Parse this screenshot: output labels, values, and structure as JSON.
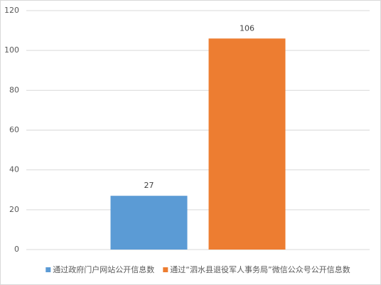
{
  "chart_data": {
    "type": "bar",
    "categories": [
      null
    ],
    "series": [
      {
        "name": "通过政府门户网站公开信息数",
        "color": "#5b9bd5",
        "values": [
          27
        ]
      },
      {
        "name": "通过“泗水县退役军人事务局”微信公众号公开信息数",
        "color": "#ed7d31",
        "values": [
          106
        ]
      }
    ],
    "ylim": [
      0,
      120
    ],
    "yticks": [
      0,
      20,
      40,
      60,
      80,
      100,
      120
    ],
    "grid": true,
    "legend": "bottom"
  }
}
